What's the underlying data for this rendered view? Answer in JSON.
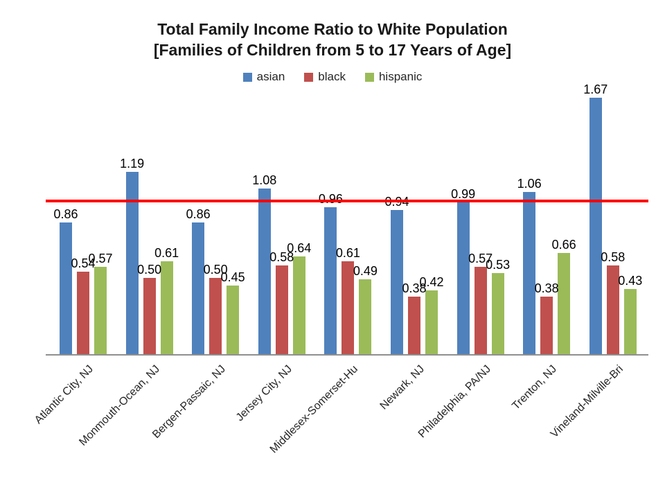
{
  "title": {
    "line1": "Total Family Income Ratio to White Population",
    "line2": "[Families of Children from 5 to 17 Years of Age]"
  },
  "chart_data": {
    "type": "bar",
    "title": "Total Family Income Ratio to White Population [Families of Children from 5 to 17 Years of Age]",
    "categories": [
      "Atlantic City, NJ",
      "Monmouth-Ocean, NJ",
      "Bergen-Passaic, NJ",
      "Jersey City, NJ",
      "Middlesex-Somerset-Hu",
      "Newark, NJ",
      "Philadelphia, PA/NJ",
      "Trenton, NJ",
      "Vineland-Milville-Bri"
    ],
    "series": [
      {
        "name": "asian",
        "color": "#4F81BD",
        "values": [
          0.86,
          1.19,
          0.86,
          1.08,
          0.96,
          0.94,
          0.99,
          1.06,
          1.67
        ]
      },
      {
        "name": "black",
        "color": "#C0504D",
        "values": [
          0.54,
          0.5,
          0.5,
          0.58,
          0.61,
          0.38,
          0.57,
          0.38,
          0.58
        ]
      },
      {
        "name": "hispanic",
        "color": "#9BBB59",
        "values": [
          0.57,
          0.61,
          0.45,
          0.64,
          0.49,
          0.42,
          0.53,
          0.66,
          0.43
        ]
      }
    ],
    "reference_line": {
      "value": 1.0,
      "color": "#FF0000"
    },
    "data_labels": true,
    "data_label_format": "0.00",
    "ylim": [
      0,
      1.8
    ],
    "grid": false,
    "legend_position": "top",
    "xlabel": "",
    "ylabel": ""
  }
}
